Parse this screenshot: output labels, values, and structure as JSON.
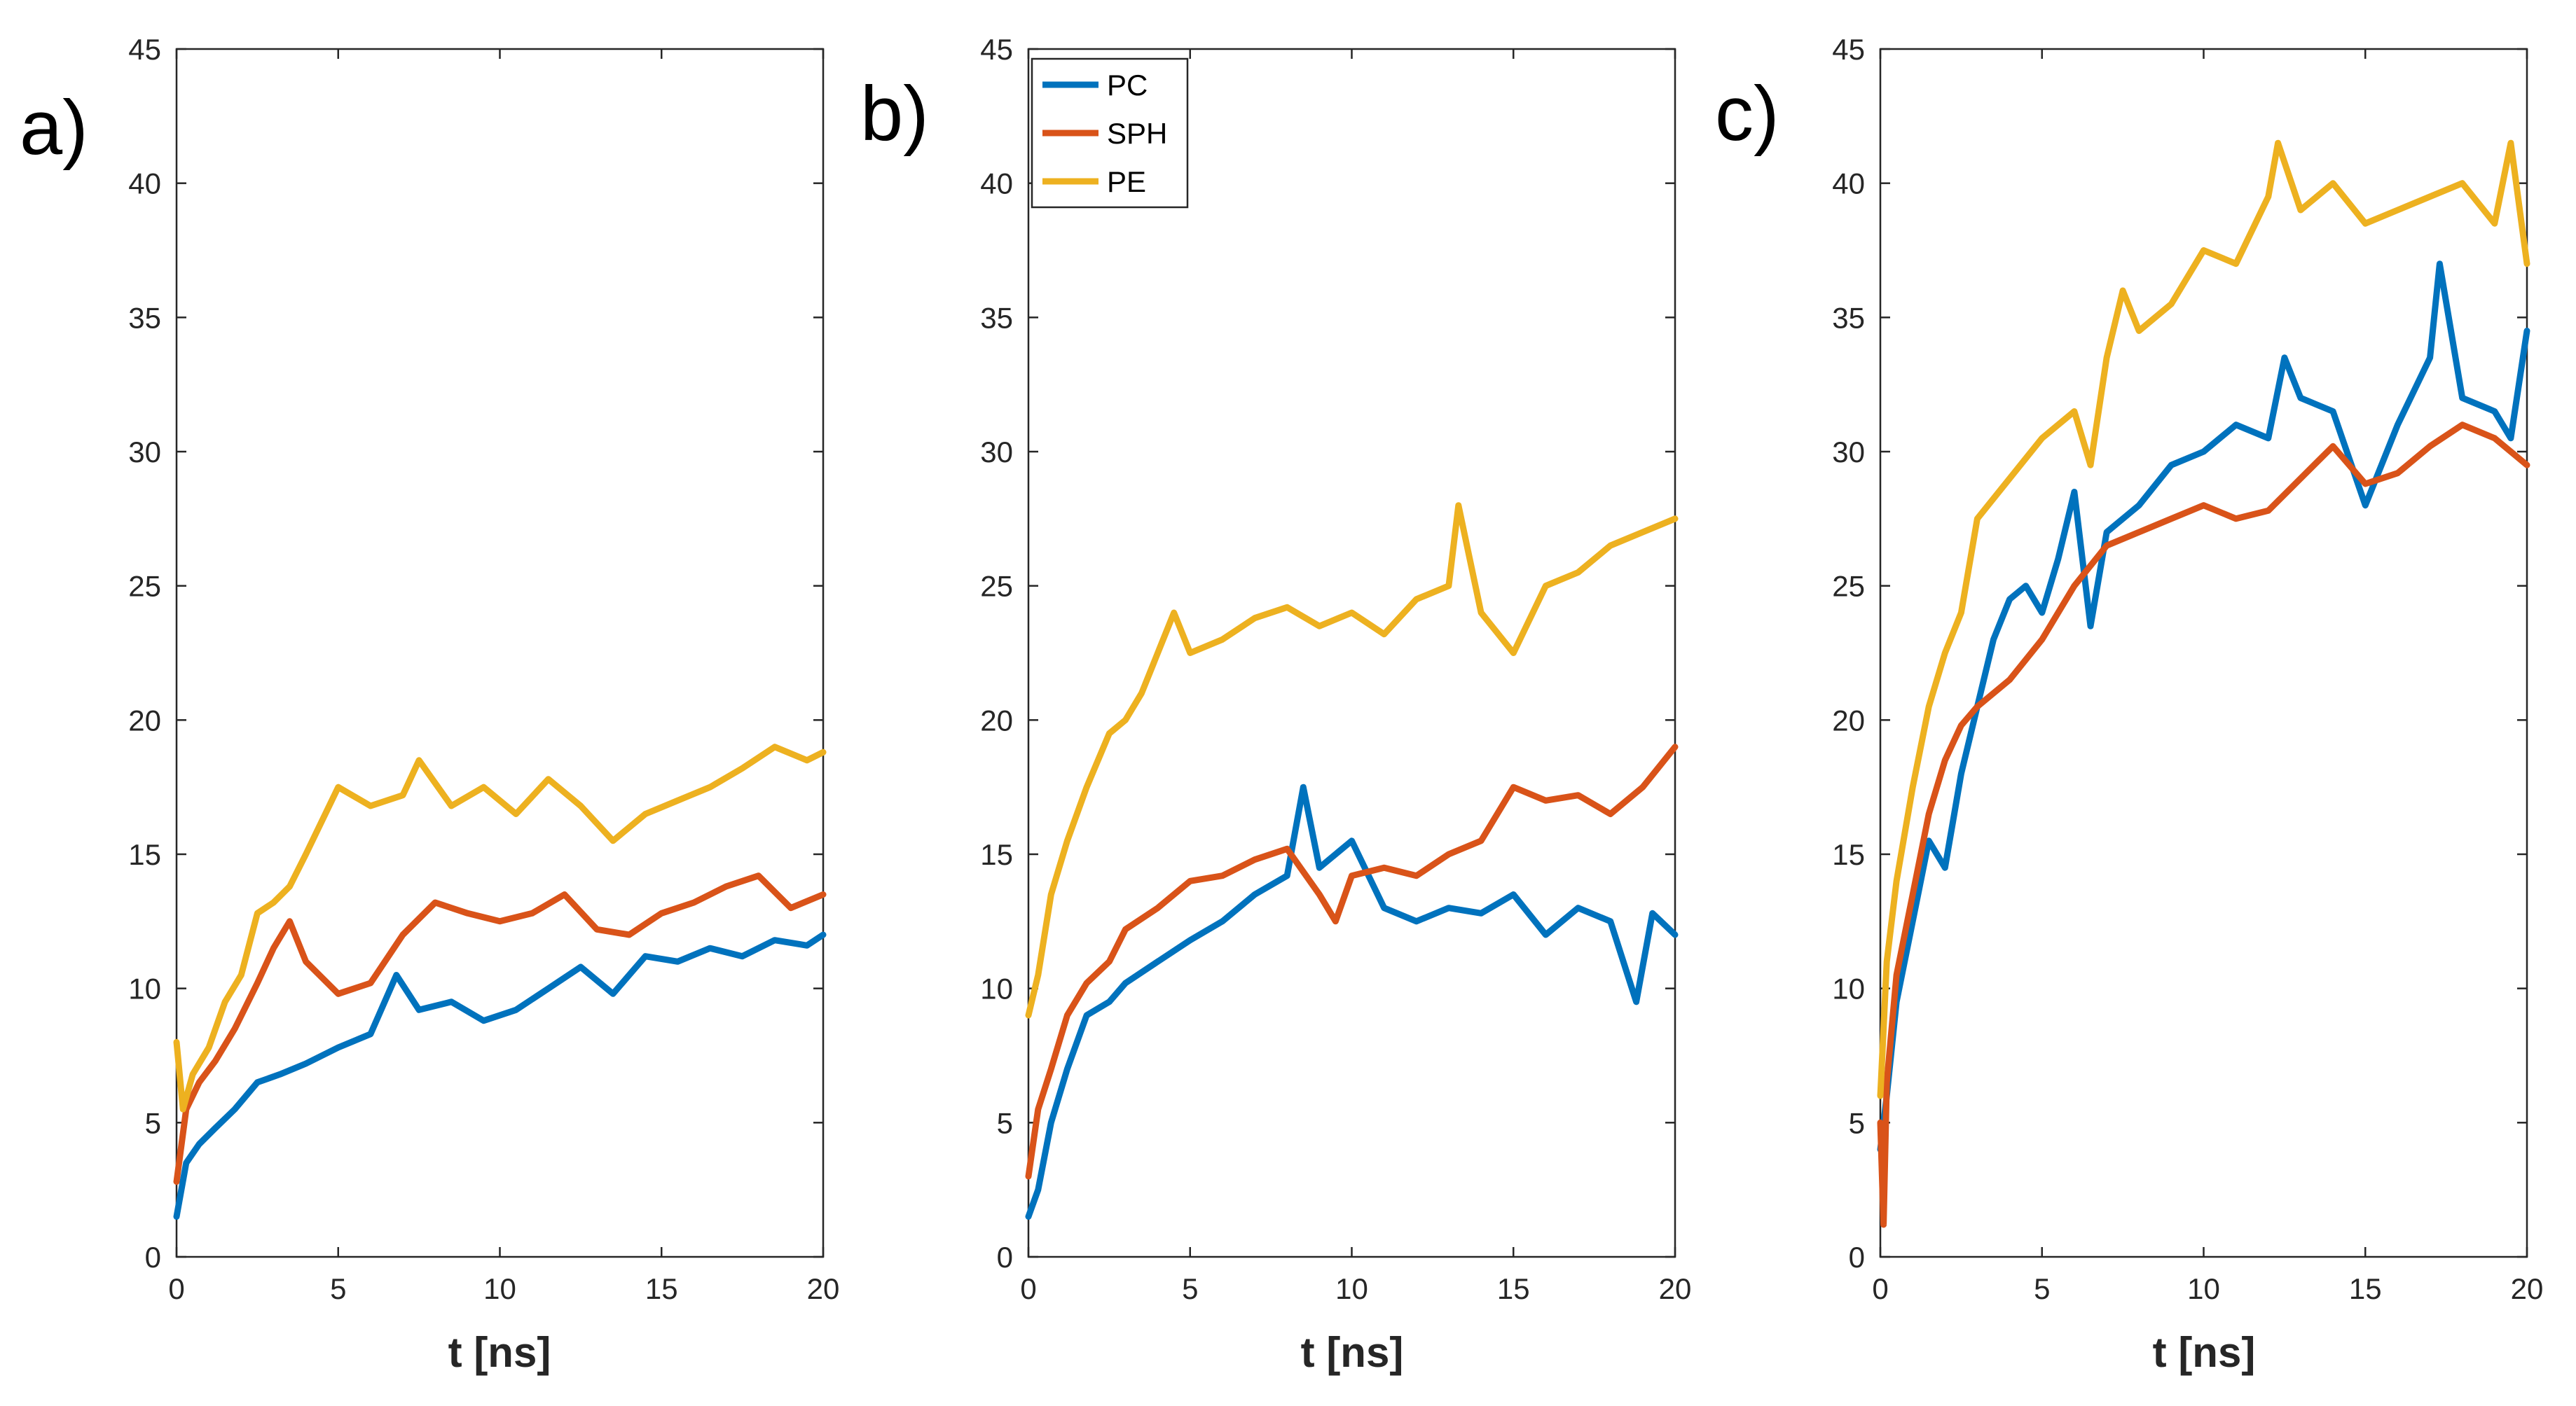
{
  "colors": {
    "PC": "#0072BD",
    "SPH": "#D95319",
    "PE": "#EDB120"
  },
  "chart_data": [
    {
      "type": "line",
      "panel_label": "a)",
      "xlabel": "t [ns]",
      "ylabel": "",
      "xlim": [
        0,
        20
      ],
      "ylim": [
        0,
        45
      ],
      "xticks": [
        0,
        5,
        10,
        15,
        20
      ],
      "yticks": [
        0,
        5,
        10,
        15,
        20,
        25,
        30,
        35,
        40,
        45
      ],
      "legend": null,
      "series": [
        {
          "name": "PC",
          "color_key": "PC",
          "x": [
            0,
            0.3,
            0.7,
            1.2,
            1.8,
            2.5,
            3.2,
            4,
            5,
            6,
            6.8,
            7.5,
            8.5,
            9.5,
            10.5,
            11.5,
            12.5,
            13.5,
            14.5,
            15.5,
            16.5,
            17.5,
            18.5,
            19.5,
            20
          ],
          "y": [
            1.5,
            3.5,
            4.2,
            4.8,
            5.5,
            6.5,
            6.8,
            7.2,
            7.8,
            8.3,
            10.5,
            9.2,
            9.5,
            8.8,
            9.2,
            10.0,
            10.8,
            9.8,
            11.2,
            11.0,
            11.5,
            11.2,
            11.8,
            11.6,
            12.0
          ]
        },
        {
          "name": "SPH",
          "color_key": "SPH",
          "x": [
            0,
            0.3,
            0.7,
            1.2,
            1.8,
            2.5,
            3,
            3.5,
            4,
            5,
            6,
            7,
            8,
            9,
            10,
            11,
            12,
            13,
            14,
            15,
            16,
            17,
            18,
            19,
            20
          ],
          "y": [
            2.8,
            5.5,
            6.5,
            7.3,
            8.5,
            10.2,
            11.5,
            12.5,
            11.0,
            9.8,
            10.2,
            12.0,
            13.2,
            12.8,
            12.5,
            12.8,
            13.5,
            12.2,
            12.0,
            12.8,
            13.2,
            13.8,
            14.2,
            13.0,
            13.5
          ]
        },
        {
          "name": "PE",
          "color_key": "PE",
          "x": [
            0,
            0.2,
            0.5,
            1,
            1.5,
            2,
            2.5,
            3,
            3.5,
            4,
            5,
            6,
            7,
            7.5,
            8.5,
            9.5,
            10.5,
            11.5,
            12.5,
            13.5,
            14.5,
            15.5,
            16.5,
            17.5,
            18.5,
            19.5,
            20
          ],
          "y": [
            8.0,
            5.5,
            6.8,
            7.8,
            9.5,
            10.5,
            12.8,
            13.2,
            13.8,
            15.0,
            17.5,
            16.8,
            17.2,
            18.5,
            16.8,
            17.5,
            16.5,
            17.8,
            16.8,
            15.5,
            16.5,
            17.0,
            17.5,
            18.2,
            19.0,
            18.5,
            18.8
          ]
        }
      ]
    },
    {
      "type": "line",
      "panel_label": "b)",
      "xlabel": "t [ns]",
      "ylabel": "",
      "xlim": [
        0,
        20
      ],
      "ylim": [
        0,
        45
      ],
      "xticks": [
        0,
        5,
        10,
        15,
        20
      ],
      "yticks": [
        0,
        5,
        10,
        15,
        20,
        25,
        30,
        35,
        40,
        45
      ],
      "legend": {
        "location": "top-left",
        "entries": [
          "PC",
          "SPH",
          "PE"
        ]
      },
      "series": [
        {
          "name": "PC",
          "color_key": "PC",
          "x": [
            0,
            0.3,
            0.7,
            1.2,
            1.8,
            2.5,
            3,
            4,
            5,
            6,
            7,
            8,
            8.5,
            9,
            10,
            11,
            12,
            13,
            14,
            15,
            16,
            17,
            18,
            18.8,
            19.3,
            20
          ],
          "y": [
            1.5,
            2.5,
            5.0,
            7.0,
            9.0,
            9.5,
            10.2,
            11.0,
            11.8,
            12.5,
            13.5,
            14.2,
            17.5,
            14.5,
            15.5,
            13.0,
            12.5,
            13.0,
            12.8,
            13.5,
            12.0,
            13.0,
            12.5,
            9.5,
            12.8,
            12.0
          ]
        },
        {
          "name": "SPH",
          "color_key": "SPH",
          "x": [
            0,
            0.3,
            0.7,
            1.2,
            1.8,
            2.5,
            3,
            4,
            5,
            6,
            7,
            8,
            9,
            9.5,
            10,
            11,
            12,
            13,
            14,
            15,
            16,
            17,
            18,
            19,
            20
          ],
          "y": [
            3.0,
            5.5,
            7.0,
            9.0,
            10.2,
            11.0,
            12.2,
            13.0,
            14.0,
            14.2,
            14.8,
            15.2,
            13.5,
            12.5,
            14.2,
            14.5,
            14.2,
            15.0,
            15.5,
            17.5,
            17.0,
            17.2,
            16.5,
            17.5,
            19.0
          ]
        },
        {
          "name": "PE",
          "color_key": "PE",
          "x": [
            0,
            0.3,
            0.7,
            1.2,
            1.8,
            2.5,
            3,
            3.5,
            4,
            4.5,
            5,
            6,
            7,
            8,
            9,
            10,
            11,
            12,
            13,
            13.3,
            14,
            15,
            16,
            17,
            18,
            19,
            20
          ],
          "y": [
            9.0,
            10.5,
            13.5,
            15.5,
            17.5,
            19.5,
            20.0,
            21.0,
            22.5,
            24.0,
            22.5,
            23.0,
            23.8,
            24.2,
            23.5,
            24.0,
            23.2,
            24.5,
            25.0,
            28.0,
            24.0,
            22.5,
            25.0,
            25.5,
            26.5,
            27.0,
            27.5
          ]
        }
      ]
    },
    {
      "type": "line",
      "panel_label": "c)",
      "xlabel": "t [ns]",
      "ylabel": "",
      "xlim": [
        0,
        20
      ],
      "ylim": [
        0,
        45
      ],
      "xticks": [
        0,
        5,
        10,
        15,
        20
      ],
      "yticks": [
        0,
        5,
        10,
        15,
        20,
        25,
        30,
        35,
        40,
        45
      ],
      "legend": null,
      "series": [
        {
          "name": "PC",
          "color_key": "PC",
          "x": [
            0,
            0.2,
            0.5,
            1,
            1.5,
            2,
            2.5,
            3,
            3.5,
            4,
            4.5,
            5,
            5.5,
            6,
            6.5,
            7,
            8,
            9,
            10,
            11,
            12,
            12.5,
            13,
            14,
            15,
            16,
            17,
            17.3,
            18,
            19,
            19.5,
            20
          ],
          "y": [
            4.0,
            6.0,
            9.5,
            12.5,
            15.5,
            14.5,
            18.0,
            20.5,
            23.0,
            24.5,
            25.0,
            24.0,
            26.0,
            28.5,
            23.5,
            27.0,
            28.0,
            29.5,
            30.0,
            31.0,
            30.5,
            33.5,
            32.0,
            31.5,
            28.0,
            31.0,
            33.5,
            37.0,
            32.0,
            31.5,
            30.5,
            34.5
          ]
        },
        {
          "name": "SPH",
          "color_key": "SPH",
          "x": [
            0,
            0.1,
            0.2,
            0.5,
            1,
            1.5,
            2,
            2.5,
            3,
            4,
            5,
            6,
            7,
            8,
            9,
            10,
            11,
            12,
            13,
            14,
            15,
            16,
            17,
            18,
            19,
            20
          ],
          "y": [
            5.0,
            1.2,
            6.5,
            10.5,
            13.5,
            16.5,
            18.5,
            19.8,
            20.5,
            21.5,
            23.0,
            25.0,
            26.5,
            27.0,
            27.5,
            28.0,
            27.5,
            27.8,
            29.0,
            30.2,
            28.8,
            29.2,
            30.2,
            31.0,
            30.5,
            29.5
          ]
        },
        {
          "name": "PE",
          "color_key": "PE",
          "x": [
            0,
            0.2,
            0.5,
            1,
            1.5,
            2,
            2.5,
            3,
            4,
            5,
            6,
            6.5,
            7,
            7.5,
            8,
            9,
            10,
            11,
            12,
            12.3,
            13,
            14,
            15,
            16,
            17,
            18,
            19,
            19.5,
            20
          ],
          "y": [
            6.0,
            11.0,
            14.0,
            17.5,
            20.5,
            22.5,
            24.0,
            27.5,
            29.0,
            30.5,
            31.5,
            29.5,
            33.5,
            36.0,
            34.5,
            35.5,
            37.5,
            37.0,
            39.5,
            41.5,
            39.0,
            40.0,
            38.5,
            39.0,
            39.5,
            40.0,
            38.5,
            41.5,
            37.0
          ]
        }
      ]
    }
  ]
}
